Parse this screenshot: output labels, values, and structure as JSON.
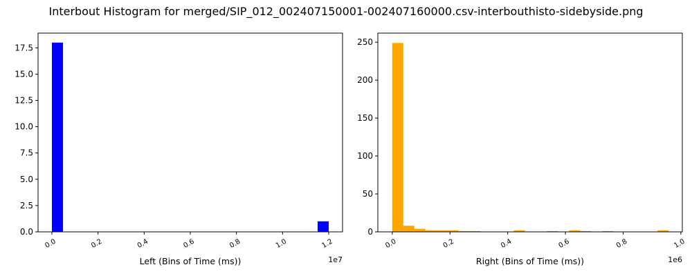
{
  "title": "Interbout Histogram for merged/SIP_012_002407150001-002407160000.csv-interbouthisto-sidebyside.png",
  "chart_data": [
    {
      "type": "bar",
      "subplot": "left",
      "color": "#0000ff",
      "xlabel": "Left (Bins of Time (ms))",
      "x_offset_label": "1e7",
      "xlim": [
        -0.06,
        1.26
      ],
      "ylim": [
        0,
        18.9
      ],
      "x_ticks": [
        "0.0",
        "0.2",
        "0.4",
        "0.6",
        "0.8",
        "1.0",
        "1.2"
      ],
      "x_tick_values": [
        0.0,
        0.2,
        0.4,
        0.6,
        0.8,
        1.0,
        1.2
      ],
      "y_ticks": [
        "0.0",
        "2.5",
        "5.0",
        "7.5",
        "10.0",
        "12.5",
        "15.0",
        "17.5"
      ],
      "y_tick_values": [
        0,
        2.5,
        5,
        7.5,
        10,
        12.5,
        15,
        17.5
      ],
      "bars": [
        {
          "x0": 0.0,
          "x1": 0.048,
          "value": 18
        },
        {
          "x0": 1.152,
          "x1": 1.2,
          "value": 1
        }
      ]
    },
    {
      "type": "bar",
      "subplot": "right",
      "color": "#ffa500",
      "xlabel": "Right (Bins of Time (ms))",
      "x_offset_label": "1e6",
      "xlim": [
        -0.05,
        1.005
      ],
      "ylim": [
        0,
        262
      ],
      "x_ticks": [
        "0.0",
        "0.2",
        "0.4",
        "0.6",
        "0.8",
        "1.0"
      ],
      "x_tick_values": [
        0.0,
        0.2,
        0.4,
        0.6,
        0.8,
        1.0
      ],
      "y_ticks": [
        "0",
        "50",
        "100",
        "150",
        "200",
        "250"
      ],
      "y_tick_values": [
        0,
        50,
        100,
        150,
        200,
        250
      ],
      "bars": [
        {
          "x0": 0.0,
          "x1": 0.0383,
          "value": 249
        },
        {
          "x0": 0.0383,
          "x1": 0.0766,
          "value": 8
        },
        {
          "x0": 0.0766,
          "x1": 0.1149,
          "value": 4
        },
        {
          "x0": 0.1149,
          "x1": 0.1532,
          "value": 2
        },
        {
          "x0": 0.1532,
          "x1": 0.1915,
          "value": 2
        },
        {
          "x0": 0.1915,
          "x1": 0.2298,
          "value": 2
        },
        {
          "x0": 0.2298,
          "x1": 0.2681,
          "value": 1
        },
        {
          "x0": 0.2681,
          "x1": 0.3064,
          "value": 1
        },
        {
          "x0": 0.4213,
          "x1": 0.4596,
          "value": 2
        },
        {
          "x0": 0.5362,
          "x1": 0.5745,
          "value": 1
        },
        {
          "x0": 0.6128,
          "x1": 0.6511,
          "value": 2
        },
        {
          "x0": 0.6511,
          "x1": 0.6894,
          "value": 1
        },
        {
          "x0": 0.7277,
          "x1": 0.766,
          "value": 1
        },
        {
          "x0": 0.9192,
          "x1": 0.9575,
          "value": 2
        }
      ]
    }
  ]
}
